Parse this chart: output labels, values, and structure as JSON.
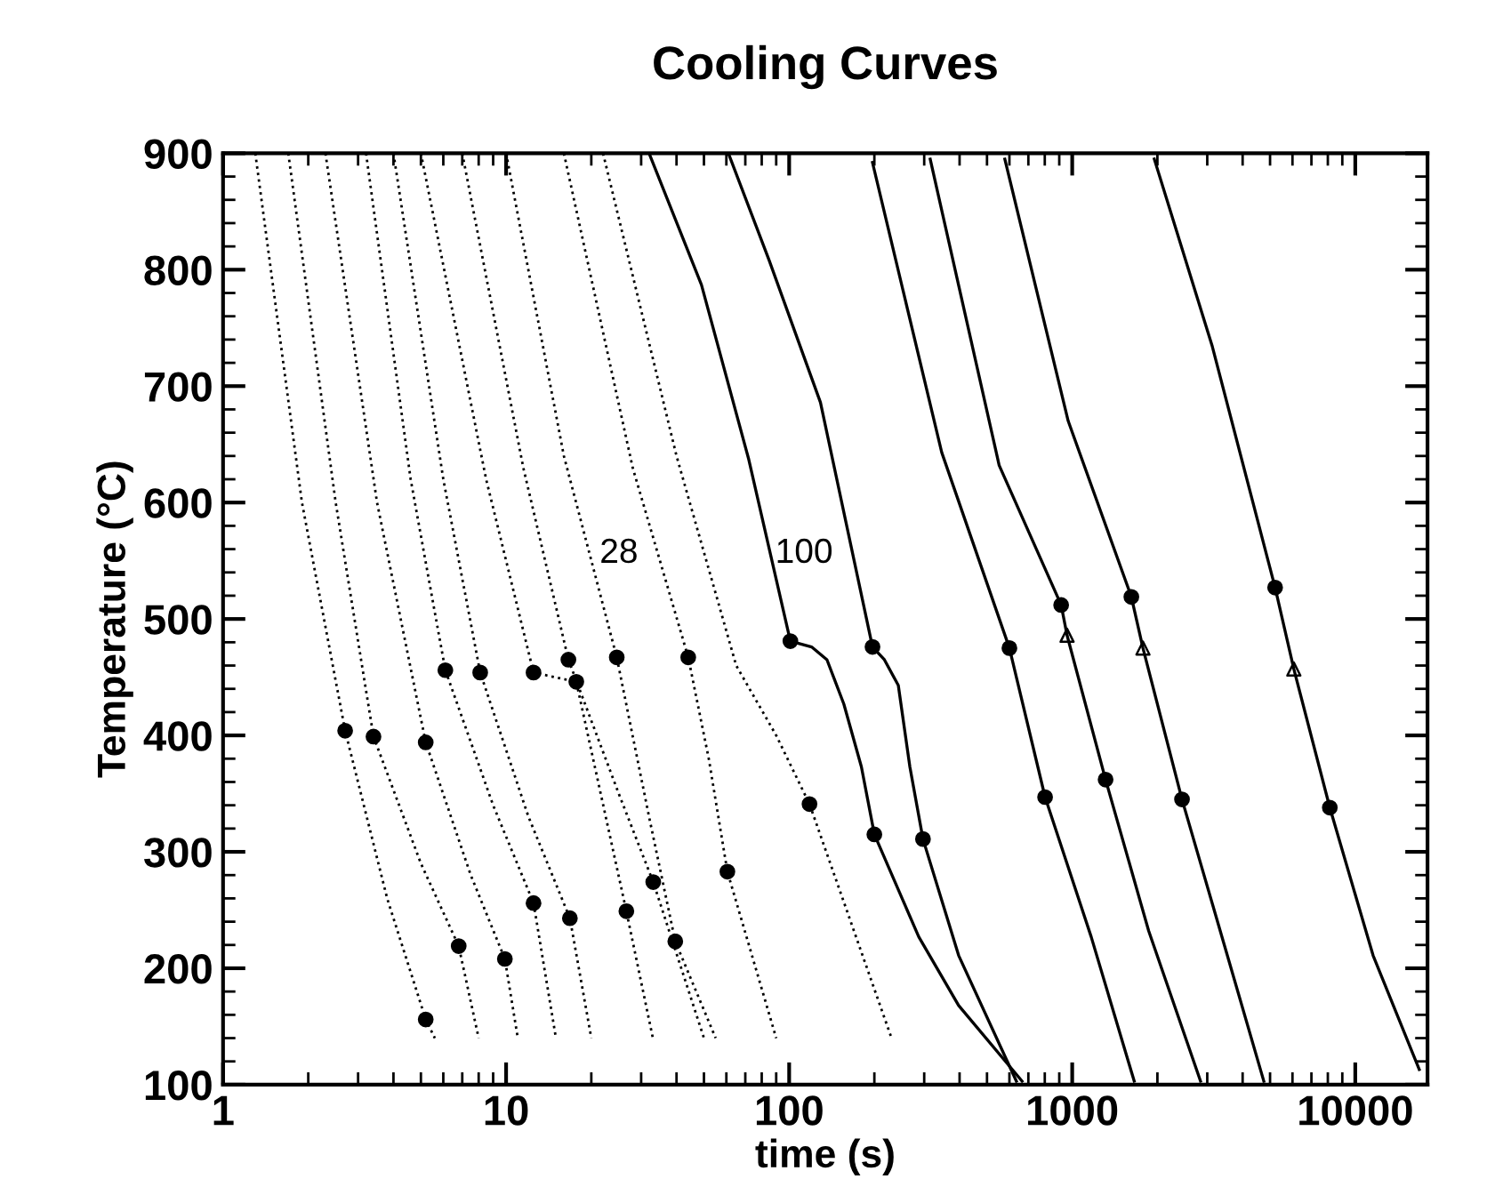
{
  "chart_data": {
    "type": "line",
    "title": "Cooling Curves",
    "xlabel": "time (s)",
    "ylabel": "Temperature (°C)",
    "log": "x",
    "xlim": [
      1,
      18000
    ],
    "ylim": [
      100,
      900
    ],
    "xticks": [
      1,
      10,
      100,
      1000,
      10000
    ],
    "yticks": [
      100,
      200,
      300,
      400,
      500,
      600,
      700,
      800,
      900
    ],
    "series": [
      {
        "line_style": "dotted",
        "color": "#000000",
        "x": [
          1.3,
          1.9,
          2.7,
          3.8,
          5.2,
          5.6
        ],
        "values": [
          900,
          600,
          404,
          260,
          156,
          140
        ]
      },
      {
        "line_style": "dotted",
        "color": "#000000",
        "x": [
          1.7,
          2.5,
          3.4,
          5.0,
          6.8,
          8.0
        ],
        "values": [
          900,
          600,
          399,
          290,
          219,
          140
        ]
      },
      {
        "line_style": "dotted",
        "color": "#000000",
        "x": [
          2.3,
          3.5,
          5.2,
          7.5,
          9.9,
          11
        ],
        "values": [
          900,
          600,
          394,
          280,
          208,
          140
        ]
      },
      {
        "line_style": "dotted",
        "color": "#000000",
        "x": [
          3.2,
          4.6,
          6.1,
          9.0,
          12.5,
          15
        ],
        "values": [
          900,
          620,
          456,
          340,
          256,
          140
        ]
      },
      {
        "line_style": "dotted",
        "color": "#000000",
        "x": [
          4.0,
          6.0,
          8.1,
          12,
          16.8,
          20
        ],
        "values": [
          900,
          620,
          454,
          330,
          243,
          140
        ]
      },
      {
        "line_style": "dotted",
        "color": "#000000",
        "x": [
          5.0,
          8.5,
          12.5,
          17.7,
          26.6,
          33
        ],
        "values": [
          900,
          620,
          454,
          446,
          249,
          140
        ]
      },
      {
        "line_style": "dotted",
        "color": "#000000",
        "x": [
          7.0,
          11.5,
          16.6,
          25,
          33.1,
          50
        ],
        "values": [
          900,
          630,
          465,
          350,
          274,
          140
        ]
      },
      {
        "line_style": "dotted",
        "color": "#000000",
        "x": [
          10,
          16,
          24.6,
          32,
          39.6,
          55
        ],
        "values": [
          900,
          640,
          467,
          330,
          223,
          140
        ]
      },
      {
        "name": "28",
        "line_style": "dotted",
        "color": "#000000",
        "x": [
          16,
          28,
          44,
          52,
          60.5,
          90
        ],
        "values": [
          900,
          630,
          467,
          380,
          283,
          140
        ]
      },
      {
        "line_style": "dotted",
        "color": "#000000",
        "x": [
          22,
          40,
          65,
          90,
          118,
          230
        ],
        "values": [
          900,
          640,
          460,
          400,
          341,
          140
        ]
      },
      {
        "line_style": "solid",
        "color": "#000000",
        "x": [
          32,
          49,
          72,
          101,
          120,
          136,
          156,
          180,
          200,
          287,
          397,
          665
        ],
        "values": [
          900,
          787,
          637,
          481,
          476,
          465,
          427,
          373,
          315,
          227,
          168,
          103
        ]
      },
      {
        "name": "100",
        "line_style": "solid",
        "color": "#000000",
        "x": [
          61,
          85,
          129,
          197,
          217,
          243,
          267,
          297,
          397,
          635
        ],
        "values": [
          900,
          808,
          686,
          476,
          465,
          443,
          373,
          311,
          211,
          103
        ]
      },
      {
        "line_style": "solid",
        "color": "#000000",
        "x": [
          197,
          346,
          600,
          802,
          1167,
          1656
        ],
        "values": [
          892,
          643,
          475,
          347,
          227,
          103
        ]
      },
      {
        "line_style": "solid",
        "color": "#000000",
        "x": [
          315,
          552,
          914,
          959,
          1312,
          1863,
          2840
        ],
        "values": [
          895,
          632,
          512,
          486,
          362,
          232,
          103
        ]
      },
      {
        "line_style": "solid",
        "color": "#000000",
        "x": [
          578,
          968,
          1618,
          1778,
          2443,
          3428,
          4753
        ],
        "values": [
          895,
          670,
          519,
          475,
          345,
          222,
          103
        ]
      },
      {
        "line_style": "solid",
        "color": "#000000",
        "x": [
          1950,
          3118,
          5210,
          6067,
          8130,
          11560,
          16830
        ],
        "values": [
          895,
          735,
          527,
          457,
          338,
          211,
          113
        ]
      },
      {
        "type": "scatter",
        "marker": "circle",
        "color": "#000000",
        "x": [
          6.1,
          8.1,
          12.5,
          16.6,
          17.7,
          24.6,
          44,
          2.7,
          3.4,
          5.2,
          118,
          60.5,
          33.1,
          26.6,
          12.5,
          16.8,
          39.6,
          6.8,
          9.9,
          5.2,
          101,
          197,
          600,
          914,
          1618,
          5210,
          200,
          297,
          802,
          1312,
          2443,
          8130
        ],
        "values": [
          456,
          454,
          454,
          465,
          446,
          467,
          467,
          404,
          399,
          394,
          341,
          283,
          274,
          249,
          256,
          243,
          223,
          219,
          208,
          156,
          481,
          476,
          475,
          512,
          519,
          527,
          315,
          311,
          347,
          362,
          345,
          338
        ]
      },
      {
        "type": "scatter",
        "marker": "triangle",
        "color": "#000000",
        "x": [
          959,
          1778,
          6067
        ],
        "values": [
          486,
          475,
          457
        ]
      }
    ]
  }
}
